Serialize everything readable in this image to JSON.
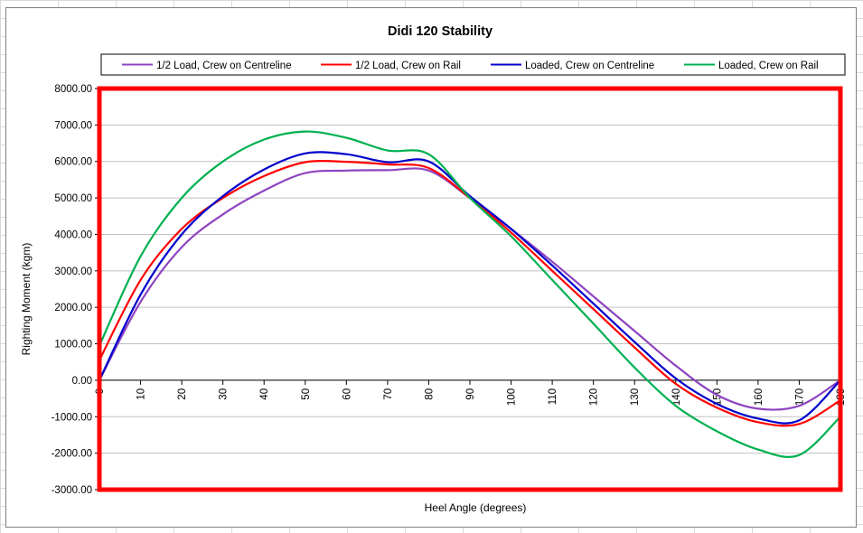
{
  "chart_data": {
    "type": "line",
    "title": "Didi 120 Stability",
    "xlabel": "Heel Angle (degrees)",
    "ylabel": "Righting Moment (kgm)",
    "xlim": [
      0,
      180
    ],
    "ylim": [
      -3000,
      8000
    ],
    "x_ticks": [
      0,
      10,
      20,
      30,
      40,
      50,
      60,
      70,
      80,
      90,
      100,
      110,
      120,
      130,
      140,
      150,
      160,
      170,
      180
    ],
    "x_tick_labels": [
      "0",
      "10",
      "20",
      "30",
      "40",
      "50",
      "60",
      "70",
      "80",
      "90",
      "100",
      "110",
      "120",
      "130",
      "140",
      "150",
      "160",
      "170",
      "180"
    ],
    "y_ticks": [
      -3000,
      -2000,
      -1000,
      0,
      1000,
      2000,
      3000,
      4000,
      5000,
      6000,
      7000,
      8000
    ],
    "y_tick_labels": [
      "-3000.00",
      "-2000.00",
      "-1000.00",
      "0.00",
      "1000.00",
      "2000.00",
      "3000.00",
      "4000.00",
      "5000.00",
      "6000.00",
      "7000.00",
      "8000.00"
    ],
    "legend_position": "top",
    "plot_area_border_color": "#ff0000",
    "x": [
      0,
      10,
      20,
      30,
      40,
      50,
      60,
      70,
      80,
      90,
      100,
      110,
      120,
      130,
      140,
      150,
      160,
      170,
      180
    ],
    "series": [
      {
        "name": "1/2 Load, Crew on Centreline",
        "color": "#8e44c0",
        "values": [
          0,
          2150,
          3650,
          4550,
          5200,
          5680,
          5750,
          5760,
          5750,
          5000,
          4150,
          3250,
          2300,
          1350,
          400,
          -400,
          -780,
          -700,
          0
        ]
      },
      {
        "name": "1/2 Load, Crew on Rail",
        "color": "#ff0000",
        "values": [
          550,
          2750,
          4150,
          5000,
          5600,
          5980,
          5990,
          5920,
          5820,
          5000,
          4050,
          3000,
          1950,
          900,
          -100,
          -750,
          -1150,
          -1200,
          -550
        ]
      },
      {
        "name": "Loaded, Crew on Centreline",
        "color": "#0000cc",
        "values": [
          0,
          2350,
          4000,
          5050,
          5780,
          6220,
          6200,
          5980,
          6000,
          5050,
          4150,
          3150,
          2100,
          1050,
          50,
          -650,
          -1050,
          -1100,
          0
        ]
      },
      {
        "name": "Loaded, Crew on Rail",
        "color": "#00b050",
        "values": [
          950,
          3400,
          5000,
          6000,
          6600,
          6820,
          6650,
          6300,
          6200,
          5000,
          3950,
          2750,
          1550,
          350,
          -700,
          -1400,
          -1900,
          -2050,
          -1000
        ]
      }
    ]
  }
}
